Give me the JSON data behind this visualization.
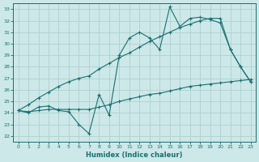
{
  "xlabel": "Humidex (Indice chaleur)",
  "background_color": "#cce8e8",
  "grid_color": "#b0d0d0",
  "line_color": "#1a7070",
  "xlim": [
    -0.5,
    23.5
  ],
  "ylim": [
    21.5,
    33.5
  ],
  "yticks": [
    22,
    23,
    24,
    25,
    26,
    27,
    28,
    29,
    30,
    31,
    32,
    33
  ],
  "xticks": [
    0,
    1,
    2,
    3,
    4,
    5,
    6,
    7,
    8,
    9,
    10,
    11,
    12,
    13,
    14,
    15,
    16,
    17,
    18,
    19,
    20,
    21,
    22,
    23
  ],
  "series_jagged": [
    24.2,
    24.0,
    24.5,
    24.6,
    24.2,
    24.1,
    23.0,
    22.2,
    25.6,
    23.8,
    29.0,
    30.5,
    31.0,
    30.5,
    29.5,
    33.2,
    31.5,
    32.2,
    32.3,
    32.1,
    31.8,
    29.5,
    28.0,
    26.7
  ],
  "series_upper": [
    24.2,
    24.7,
    25.3,
    25.8,
    26.3,
    26.7,
    27.0,
    27.2,
    27.8,
    28.3,
    28.8,
    29.2,
    29.7,
    30.2,
    30.6,
    31.0,
    31.4,
    31.7,
    32.0,
    32.2,
    32.2,
    29.5,
    28.0,
    26.7
  ],
  "series_lower": [
    24.2,
    24.1,
    24.2,
    24.3,
    24.3,
    24.3,
    24.3,
    24.3,
    24.5,
    24.7,
    25.0,
    25.2,
    25.4,
    25.6,
    25.7,
    25.9,
    26.1,
    26.3,
    26.4,
    26.5,
    26.6,
    26.7,
    26.8,
    26.9
  ]
}
